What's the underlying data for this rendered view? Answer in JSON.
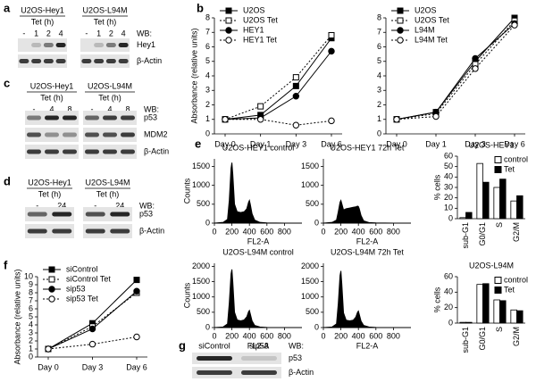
{
  "panel_labels": [
    "a",
    "b",
    "c",
    "d",
    "e",
    "f",
    "g"
  ],
  "blots": {
    "a": {
      "groups": [
        {
          "name": "U2OS-Hey1",
          "time": "Tet (h)",
          "lanes": [
            "-",
            "1",
            "2",
            "4"
          ]
        },
        {
          "name": "U2OS-L94M",
          "time": "Tet (h)",
          "lanes": [
            "-",
            "1",
            "2",
            "4"
          ]
        }
      ],
      "wb": "WB:",
      "rows": [
        "Hey1",
        "β-Actin"
      ]
    },
    "c": {
      "groups": [
        {
          "name": "U2OS-Hey1",
          "time": "Tet (h)",
          "lanes": [
            "-",
            "4",
            "8"
          ]
        },
        {
          "name": "U2OS-L94M",
          "time": "Tet (h)",
          "lanes": [
            "-",
            "4",
            "8"
          ]
        }
      ],
      "wb": "WB:",
      "rows": [
        "p53",
        "MDM2",
        "β-Actin"
      ]
    },
    "d": {
      "groups": [
        {
          "name": "U2OS-Hey1",
          "time": "Tet (h)",
          "lanes": [
            "-",
            "24"
          ]
        },
        {
          "name": "U2OS-L94M",
          "time": "Tet (h)",
          "lanes": [
            "-",
            "24"
          ]
        }
      ],
      "wb": "WB:",
      "rows": [
        "p53",
        "β-Actin"
      ]
    },
    "g": {
      "groups": [
        {
          "name": "siControl"
        },
        {
          "name": "sip53"
        }
      ],
      "wb": "WB:",
      "rows": [
        "p53",
        "β-Actin"
      ]
    }
  },
  "chart_data": [
    {
      "type": "line",
      "ylabel": "Absorbance (relative units)",
      "categories": [
        "Day 0",
        "Day 1",
        "Day 3",
        "Day 6"
      ],
      "ylim": [
        0,
        8
      ],
      "yticks": [
        0,
        1,
        2,
        3,
        4,
        5,
        6,
        7,
        8
      ],
      "legend": "upper left",
      "series": [
        {
          "name": "U2OS",
          "color": "#000000",
          "marker": "square",
          "filled": true,
          "dashed": false,
          "values": [
            1,
            1.3,
            3.3,
            6.6
          ]
        },
        {
          "name": "U2OS Tet",
          "color": "#000000",
          "marker": "square",
          "filled": false,
          "dashed": true,
          "values": [
            1,
            1.9,
            3.9,
            6.8
          ]
        },
        {
          "name": "HEY1",
          "color": "#000000",
          "marker": "circle",
          "filled": true,
          "dashed": false,
          "values": [
            1,
            1.1,
            2.6,
            5.7
          ]
        },
        {
          "name": "HEY1 Tet",
          "color": "#000000",
          "marker": "circle",
          "filled": false,
          "dashed": true,
          "values": [
            1,
            1.0,
            0.6,
            0.9
          ]
        }
      ]
    },
    {
      "type": "line",
      "categories": [
        "Day 0",
        "Day 1",
        "Day 3",
        "Day 6"
      ],
      "ylim": [
        0,
        8
      ],
      "yticks": [
        0,
        1,
        2,
        3,
        4,
        5,
        6,
        7,
        8
      ],
      "legend": "upper left",
      "series": [
        {
          "name": "U2OS",
          "color": "#000000",
          "marker": "square",
          "filled": true,
          "dashed": false,
          "values": [
            1,
            1.5,
            5.0,
            8.0
          ]
        },
        {
          "name": "U2OS Tet",
          "color": "#000000",
          "marker": "square",
          "filled": false,
          "dashed": true,
          "values": [
            1,
            1.4,
            4.8,
            7.8
          ]
        },
        {
          "name": "L94M",
          "color": "#000000",
          "marker": "circle",
          "filled": true,
          "dashed": false,
          "values": [
            1,
            1.5,
            5.2,
            7.6
          ]
        },
        {
          "name": "L94M Tet",
          "color": "#000000",
          "marker": "circle",
          "filled": false,
          "dashed": true,
          "values": [
            1,
            1.2,
            4.5,
            7.5
          ]
        }
      ]
    },
    {
      "type": "area",
      "title": "U2OS-HEY1 control",
      "ylabel": "Counts",
      "xlabel": "FL2-A",
      "color": "#000000",
      "xlim": [
        0,
        1000
      ],
      "xticks": [
        0,
        200,
        400,
        600,
        800
      ],
      "ylim": [
        0,
        1700
      ],
      "yticks": [
        0,
        500,
        1000,
        1500
      ],
      "x": [
        0,
        100,
        150,
        170,
        190,
        200,
        210,
        230,
        260,
        300,
        340,
        370,
        390,
        400,
        410,
        430,
        460,
        520,
        600,
        800,
        1000
      ],
      "values": [
        0,
        20,
        100,
        600,
        1450,
        1600,
        1300,
        500,
        300,
        280,
        300,
        380,
        550,
        600,
        500,
        250,
        80,
        20,
        5,
        0,
        0
      ]
    },
    {
      "type": "area",
      "title": "U2OS-HEY1 72h Tet",
      "xlabel": "FL2-A",
      "color": "#000000",
      "xlim": [
        0,
        1000
      ],
      "xticks": [
        0,
        200,
        400,
        600,
        800
      ],
      "ylim": [
        0,
        1700
      ],
      "yticks": [
        0,
        500,
        1000,
        1500
      ],
      "x": [
        0,
        100,
        150,
        170,
        190,
        200,
        210,
        230,
        260,
        300,
        340,
        370,
        390,
        400,
        410,
        430,
        460,
        520,
        600,
        800,
        1000
      ],
      "values": [
        0,
        20,
        80,
        300,
        550,
        600,
        520,
        350,
        380,
        400,
        420,
        430,
        450,
        440,
        380,
        200,
        60,
        15,
        5,
        0,
        0
      ]
    },
    {
      "type": "area",
      "title": "U2OS-L94M control",
      "ylabel": "Counts",
      "xlabel": "FL2-A",
      "color": "#000000",
      "xlim": [
        0,
        1000
      ],
      "xticks": [
        0,
        200,
        400,
        600,
        800
      ],
      "ylim": [
        0,
        2100
      ],
      "yticks": [
        0,
        500,
        1000,
        1500,
        2000
      ],
      "x": [
        0,
        100,
        150,
        170,
        190,
        200,
        210,
        230,
        260,
        300,
        340,
        370,
        390,
        400,
        410,
        430,
        460,
        520,
        600,
        800,
        1000
      ],
      "values": [
        0,
        20,
        120,
        800,
        1750,
        1900,
        1500,
        500,
        250,
        220,
        250,
        350,
        520,
        560,
        450,
        220,
        70,
        20,
        5,
        0,
        0
      ]
    },
    {
      "type": "area",
      "title": "U2OS-L94M 72h Tet",
      "xlabel": "FL2-A",
      "color": "#000000",
      "xlim": [
        0,
        1000
      ],
      "xticks": [
        0,
        200,
        400,
        600,
        800
      ],
      "ylim": [
        0,
        2100
      ],
      "yticks": [
        0,
        500,
        1000,
        1500,
        2000
      ],
      "x": [
        0,
        100,
        150,
        170,
        190,
        200,
        210,
        230,
        260,
        300,
        340,
        370,
        390,
        400,
        410,
        430,
        460,
        520,
        600,
        800,
        1000
      ],
      "values": [
        0,
        20,
        120,
        780,
        1700,
        1850,
        1450,
        480,
        240,
        220,
        240,
        340,
        500,
        540,
        430,
        210,
        70,
        20,
        5,
        0,
        0
      ]
    },
    {
      "type": "bar",
      "title": "U2OS-HEY1",
      "ylabel": "% cells",
      "categories": [
        "sub-G1",
        "G0/G1",
        "S",
        "G2/M"
      ],
      "ylim": [
        0,
        60
      ],
      "yticks": [
        0,
        10,
        20,
        30,
        40,
        50,
        60
      ],
      "legend": "upper right",
      "series": [
        {
          "name": "control",
          "color": "#ffffff",
          "values": [
            1,
            53,
            30,
            17
          ]
        },
        {
          "name": "Tet",
          "color": "#000000",
          "values": [
            6,
            35,
            38,
            22
          ]
        }
      ]
    },
    {
      "type": "bar",
      "title": "U2OS-L94M",
      "ylabel": "% cells",
      "categories": [
        "sub-G1",
        "G0/G1",
        "S",
        "G2/M"
      ],
      "ylim": [
        0,
        60
      ],
      "yticks": [
        0,
        20,
        40,
        60
      ],
      "legend": "upper right",
      "series": [
        {
          "name": "control",
          "color": "#ffffff",
          "values": [
            1,
            50,
            30,
            17
          ]
        },
        {
          "name": "Tet",
          "color": "#000000",
          "values": [
            1,
            51,
            29,
            16
          ]
        }
      ]
    },
    {
      "type": "line",
      "ylabel": "Absorbance (relative units)",
      "categories": [
        "Day 0",
        "Day 3",
        "Day 6"
      ],
      "ylim": [
        0,
        10
      ],
      "yticks": [
        0,
        1,
        2,
        3,
        4,
        5,
        6,
        7,
        8,
        9,
        10
      ],
      "legend": "upper left",
      "series": [
        {
          "name": "siControl",
          "color": "#000000",
          "marker": "square",
          "filled": true,
          "dashed": false,
          "values": [
            1,
            4.2,
            9.6
          ]
        },
        {
          "name": "siControl Tet",
          "color": "#000000",
          "marker": "square",
          "filled": false,
          "dashed": true,
          "values": [
            1,
            3.8,
            8.0
          ]
        },
        {
          "name": "sip53",
          "color": "#000000",
          "marker": "circle",
          "filled": true,
          "dashed": false,
          "values": [
            1,
            3.5,
            8.2
          ]
        },
        {
          "name": "sip53 Tet",
          "color": "#000000",
          "marker": "circle",
          "filled": false,
          "dashed": true,
          "values": [
            1,
            1.6,
            2.5
          ]
        }
      ]
    }
  ]
}
